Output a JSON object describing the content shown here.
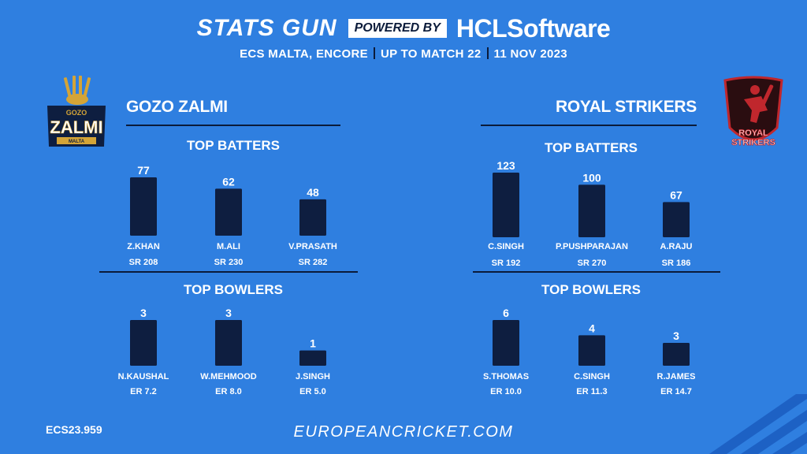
{
  "header": {
    "brand": "STATS GUN",
    "powered_by": "POWERED BY",
    "sponsor": "HCLSoftware",
    "subtitle_parts": [
      "ECS MALTA, ENCORE",
      "UP TO MATCH 22",
      "11 NOV 2023"
    ]
  },
  "teams": {
    "left": {
      "name": "GOZO ZALMI",
      "logo_text": [
        "GOZO",
        "ZALMI",
        "MALTA"
      ]
    },
    "right": {
      "name": "ROYAL STRIKERS",
      "logo_text": [
        "ROYAL",
        "STRIKERS"
      ]
    }
  },
  "colors": {
    "background": "#2f7fe0",
    "bar": "#0e1e40",
    "rule": "#0b1b3a",
    "left_logo": "#d4a437",
    "right_logo": "#c0272d"
  },
  "chart_data": [
    {
      "type": "bar",
      "title": "TOP BATTERS",
      "team": "GOZO ZALMI",
      "categories": [
        "Z.KHAN",
        "M.ALI",
        "V.PRASATH"
      ],
      "values": [
        77,
        62,
        48
      ],
      "sublabels": [
        "SR 208",
        "SR 230",
        "SR 282"
      ]
    },
    {
      "type": "bar",
      "title": "TOP BATTERS",
      "team": "ROYAL STRIKERS",
      "categories": [
        "C.SINGH",
        "P.PUSHPARAJAN",
        "A.RAJU"
      ],
      "values": [
        123,
        100,
        67
      ],
      "sublabels": [
        "SR 192",
        "SR 270",
        "SR 186"
      ]
    },
    {
      "type": "bar",
      "title": "TOP BOWLERS",
      "team": "GOZO ZALMI",
      "categories": [
        "N.KAUSHAL",
        "W.MEHMOOD",
        "J.SINGH"
      ],
      "values": [
        3,
        3,
        1
      ],
      "sublabels": [
        "ER 7.2",
        "ER 8.0",
        "ER 5.0"
      ]
    },
    {
      "type": "bar",
      "title": "TOP BOWLERS",
      "team": "ROYAL STRIKERS",
      "categories": [
        "S.THOMAS",
        "C.SINGH",
        "R.JAMES"
      ],
      "values": [
        6,
        4,
        3
      ],
      "sublabels": [
        "ER 10.0",
        "ER 11.3",
        "ER 14.7"
      ]
    }
  ],
  "footer": {
    "code": "ECS23.959",
    "url": "EUROPEANCRICKET.COM"
  }
}
